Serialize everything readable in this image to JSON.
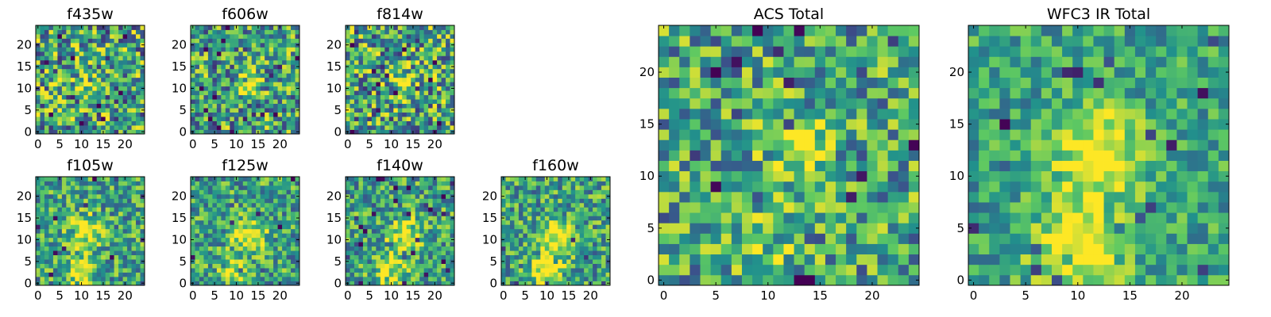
{
  "chart_data": [
    {
      "type": "heatmap",
      "title": "f435w",
      "grid": 25,
      "xlim": [
        0,
        24
      ],
      "ylim": [
        0,
        24
      ],
      "xticks": [
        0,
        5,
        10,
        15,
        20
      ],
      "yticks": [
        0,
        5,
        10,
        15,
        20
      ],
      "peaks": [
        {
          "x": 11,
          "y": 11,
          "s": 2,
          "a": 0.2
        }
      ],
      "noise": 0.55,
      "seed": 11
    },
    {
      "type": "heatmap",
      "title": "f606w",
      "grid": 25,
      "xlim": [
        0,
        24
      ],
      "ylim": [
        0,
        24
      ],
      "xticks": [
        0,
        5,
        10,
        15,
        20
      ],
      "yticks": [
        0,
        5,
        10,
        15,
        20
      ],
      "peaks": [
        {
          "x": 13,
          "y": 11,
          "s": 1.8,
          "a": 0.35
        }
      ],
      "noise": 0.5,
      "seed": 23
    },
    {
      "type": "heatmap",
      "title": "f814w",
      "grid": 25,
      "xlim": [
        0,
        24
      ],
      "ylim": [
        0,
        24
      ],
      "xticks": [
        0,
        5,
        10,
        15,
        20
      ],
      "yticks": [
        0,
        5,
        10,
        15,
        20
      ],
      "peaks": [
        {
          "x": 13,
          "y": 12,
          "s": 2.2,
          "a": 0.3
        }
      ],
      "noise": 0.55,
      "seed": 37
    },
    {
      "type": "heatmap",
      "title": "f105w",
      "grid": 25,
      "xlim": [
        0,
        24
      ],
      "ylim": [
        0,
        24
      ],
      "xticks": [
        0,
        5,
        10,
        15,
        20
      ],
      "yticks": [
        0,
        5,
        10,
        15,
        20
      ],
      "peaks": [
        {
          "x": 11,
          "y": 12,
          "s": 2.5,
          "a": 0.45
        },
        {
          "x": 10,
          "y": 3,
          "s": 2.5,
          "a": 0.4
        }
      ],
      "noise": 0.4,
      "seed": 41
    },
    {
      "type": "heatmap",
      "title": "f125w",
      "grid": 25,
      "xlim": [
        0,
        24
      ],
      "ylim": [
        0,
        24
      ],
      "xticks": [
        0,
        5,
        10,
        15,
        20
      ],
      "yticks": [
        0,
        5,
        10,
        15,
        20
      ],
      "peaks": [
        {
          "x": 13,
          "y": 11,
          "s": 2.5,
          "a": 0.5
        },
        {
          "x": 10,
          "y": 3,
          "s": 2.5,
          "a": 0.3
        }
      ],
      "noise": 0.4,
      "seed": 53
    },
    {
      "type": "heatmap",
      "title": "f140w",
      "grid": 25,
      "xlim": [
        0,
        24
      ],
      "ylim": [
        0,
        24
      ],
      "xticks": [
        0,
        5,
        10,
        15,
        20
      ],
      "yticks": [
        0,
        5,
        10,
        15,
        20
      ],
      "peaks": [
        {
          "x": 13,
          "y": 11,
          "s": 2.5,
          "a": 0.45
        },
        {
          "x": 10,
          "y": 3,
          "s": 2.5,
          "a": 0.35
        }
      ],
      "noise": 0.4,
      "seed": 67
    },
    {
      "type": "heatmap",
      "title": "f160w",
      "grid": 25,
      "xlim": [
        0,
        24
      ],
      "ylim": [
        0,
        24
      ],
      "xticks": [
        0,
        5,
        10,
        15,
        20
      ],
      "yticks": [
        0,
        5,
        10,
        15,
        20
      ],
      "peaks": [
        {
          "x": 12,
          "y": 11,
          "s": 2.5,
          "a": 0.5
        },
        {
          "x": 10,
          "y": 3,
          "s": 2.5,
          "a": 0.55
        }
      ],
      "noise": 0.4,
      "seed": 79
    },
    {
      "type": "heatmap",
      "title": "ACS Total",
      "grid": 25,
      "xlim": [
        0,
        24
      ],
      "ylim": [
        0,
        24
      ],
      "xticks": [
        0,
        5,
        10,
        15,
        20
      ],
      "yticks": [
        0,
        5,
        10,
        15,
        20
      ],
      "peaks": [
        {
          "x": 13,
          "y": 12,
          "s": 2.2,
          "a": 0.35
        },
        {
          "x": 10,
          "y": 3,
          "s": 2,
          "a": 0.2
        }
      ],
      "noise": 0.45,
      "seed": 97
    },
    {
      "type": "heatmap",
      "title": "WFC3 IR Total",
      "grid": 25,
      "xlim": [
        0,
        24
      ],
      "ylim": [
        0,
        24
      ],
      "xticks": [
        0,
        5,
        10,
        15,
        20
      ],
      "yticks": [
        0,
        5,
        10,
        15,
        20
      ],
      "peaks": [
        {
          "x": 12,
          "y": 12,
          "s": 2.8,
          "a": 0.55
        },
        {
          "x": 10,
          "y": 3,
          "s": 2.8,
          "a": 0.55
        }
      ],
      "noise": 0.3,
      "seed": 113
    }
  ],
  "colormap": [
    "#440154",
    "#3b528b",
    "#21918c",
    "#5ec962",
    "#fde725"
  ]
}
